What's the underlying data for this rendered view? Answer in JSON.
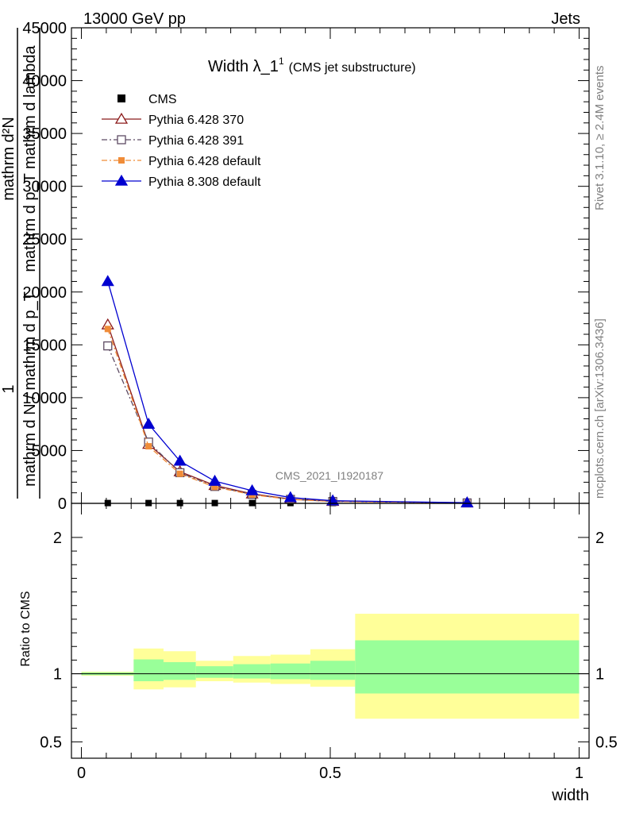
{
  "header": {
    "left": "13000 GeV pp",
    "right": "Jets"
  },
  "side": {
    "top": "Rivet 3.1.10, ≥ 2.4M events",
    "bottom": "mcplots.cern.ch [arXiv:1306.3436]"
  },
  "chart_data": {
    "type": "line",
    "title": "Width λ_1",
    "title_sup": "1",
    "title_note": "(CMS jet substructure)",
    "watermark": "CMS_2021_I1920187",
    "ylabel_parts": [
      "1",
      "mathrm d N / mathrm d p_T",
      "mathrm d²N",
      "mathrm d p_T mathrm d lambda"
    ],
    "xlabel": "width",
    "ratio_ylabel": "Ratio to CMS",
    "xlim": [
      -0.02,
      1.02
    ],
    "ylim": [
      0,
      45000
    ],
    "ratio_ylim": [
      0.38,
      2.25
    ],
    "x_ticks": [
      0,
      0.5,
      1
    ],
    "x_tick_labels": [
      "0",
      "0.5",
      "1"
    ],
    "y_ticks": [
      0,
      5000,
      10000,
      15000,
      20000,
      25000,
      30000,
      35000,
      40000,
      45000
    ],
    "y_tick_labels": [
      "0",
      "5000",
      "10000",
      "15000",
      "20000",
      "25000",
      "30000",
      "35000",
      "40000",
      "45000"
    ],
    "ratio_ticks": [
      0.5,
      1,
      2
    ],
    "ratio_tick_labels": [
      "0.5",
      "1",
      "2"
    ],
    "bin_edges": [
      0,
      0.105,
      0.165,
      0.23,
      0.305,
      0.38,
      0.46,
      0.55,
      1.0
    ],
    "x": [
      0.053,
      0.135,
      0.198,
      0.268,
      0.343,
      0.42,
      0.505,
      0.775
    ],
    "series": [
      {
        "name": "CMS",
        "marker": "square-filled",
        "color": "#000000",
        "line": "none",
        "values": [
          30,
          30,
          30,
          30,
          30,
          30,
          30,
          30
        ]
      },
      {
        "name": "Pythia 6.428 370",
        "marker": "triangle-open",
        "color": "#8b1a1a",
        "line": "solid",
        "values": [
          16900,
          5600,
          3000,
          1700,
          900,
          400,
          200,
          50
        ]
      },
      {
        "name": "Pythia 6.428 391",
        "marker": "square-open",
        "color": "#5e4b63",
        "line": "dashdot",
        "values": [
          14900,
          5800,
          2900,
          1600,
          850,
          380,
          180,
          45
        ]
      },
      {
        "name": "Pythia 6.428 default",
        "marker": "square-filled",
        "color": "#f08c38",
        "line": "dashdot",
        "values": [
          16500,
          5400,
          2800,
          1550,
          820,
          370,
          175,
          45
        ]
      },
      {
        "name": "Pythia 8.308 default",
        "marker": "triangle-filled",
        "color": "#0000d0",
        "line": "solid",
        "values": [
          21000,
          7500,
          4000,
          2100,
          1200,
          550,
          250,
          60
        ]
      }
    ],
    "ratio_bands": {
      "stat_color": "#99ff99",
      "total_color": "#ffff99",
      "stat_low": [
        0.99,
        0.945,
        0.955,
        0.97,
        0.965,
        0.96,
        0.955,
        0.855
      ],
      "stat_high": [
        1.01,
        1.105,
        1.085,
        1.055,
        1.07,
        1.075,
        1.095,
        1.245
      ],
      "total_low": [
        0.985,
        0.885,
        0.9,
        0.945,
        0.935,
        0.925,
        0.905,
        0.67
      ],
      "total_high": [
        1.015,
        1.185,
        1.165,
        1.095,
        1.13,
        1.14,
        1.18,
        1.44
      ]
    },
    "legend_position": "top-left",
    "grid": false
  }
}
